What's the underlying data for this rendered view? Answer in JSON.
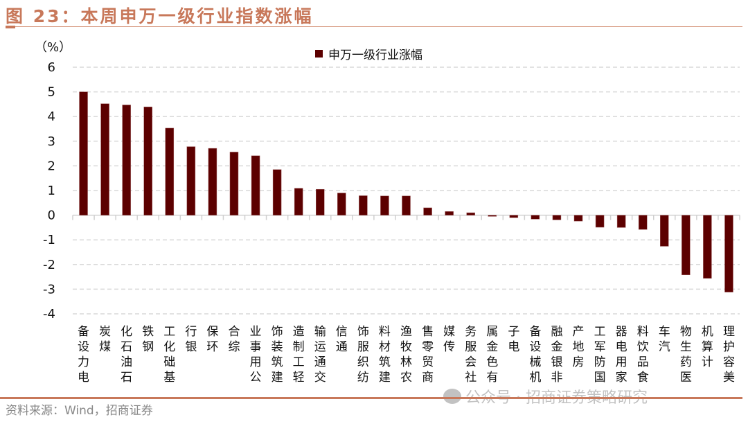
{
  "title": "图 23：本周申万一级行业指数涨幅",
  "source": "资料来源：Wind，招商证券",
  "watermark": "公众号 · 招商证券策略研究",
  "colors": {
    "bar": "#5c0000",
    "accent": "#c8785a",
    "grid": "#d9d9d9"
  },
  "chart_data": {
    "type": "bar",
    "title": "",
    "unit_label": "（%）",
    "legend": [
      "申万一级行业涨幅"
    ],
    "legend_position": "top",
    "ylim": [
      -4,
      6
    ],
    "yticks": [
      "6",
      "5",
      "4",
      "3",
      "2",
      "1",
      "0",
      "-1",
      "-2",
      "-3",
      "-4"
    ],
    "grid": true,
    "categories": [
      "电力设备",
      "煤炭",
      "石油石化",
      "钢铁",
      "基础化工",
      "银行",
      "环保",
      "综合",
      "公用事业",
      "建筑装饰",
      "轻工制造",
      "交通运输",
      "通信",
      "纺织服饰",
      "建筑材料",
      "农林牧渔",
      "商贸零售",
      "传媒",
      "社会服务",
      "有色金属",
      "电子",
      "机械设备",
      "非银金融",
      "房地产",
      "国防军工",
      "家用电器",
      "食品饮料",
      "汽车",
      "医药生物",
      "计算机",
      "美容护理"
    ],
    "series": [
      {
        "name": "申万一级行业涨幅",
        "values": [
          5.0,
          4.52,
          4.47,
          4.39,
          3.53,
          2.78,
          2.71,
          2.56,
          2.41,
          1.85,
          1.09,
          1.05,
          0.9,
          0.79,
          0.78,
          0.78,
          0.3,
          0.15,
          0.1,
          -0.05,
          -0.1,
          -0.16,
          -0.19,
          -0.24,
          -0.49,
          -0.5,
          -0.58,
          -1.26,
          -2.42,
          -2.56,
          -3.12
        ]
      }
    ]
  }
}
